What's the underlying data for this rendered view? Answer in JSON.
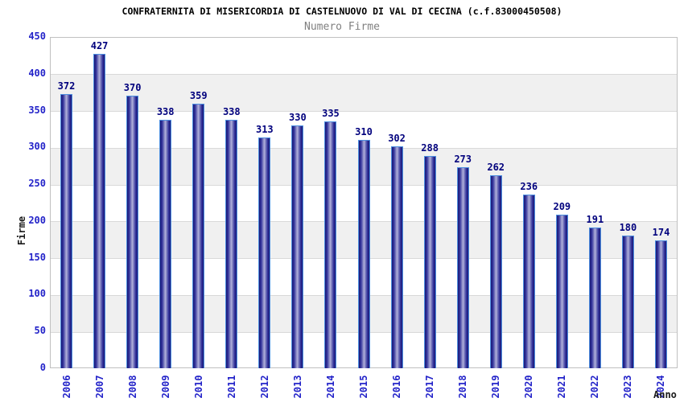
{
  "header": {
    "title": "CONFRATERNITA DI MISERICORDIA DI CASTELNUOVO DI VAL DI CECINA (c.f.83000450508)",
    "subtitle": "Numero Firme"
  },
  "chart_data": {
    "type": "bar",
    "title": "CONFRATERNITA DI MISERICORDIA DI CASTELNUOVO DI VAL DI CECINA (c.f.83000450508)",
    "subtitle": "Numero Firme",
    "xlabel": "Anno",
    "ylabel": "Firme",
    "categories": [
      "2006",
      "2007",
      "2008",
      "2009",
      "2010",
      "2011",
      "2012",
      "2013",
      "2014",
      "2015",
      "2016",
      "2017",
      "2018",
      "2019",
      "2020",
      "2021",
      "2022",
      "2023",
      "2024"
    ],
    "values": [
      372,
      427,
      370,
      338,
      359,
      338,
      313,
      330,
      335,
      310,
      302,
      288,
      273,
      262,
      236,
      209,
      191,
      180,
      174
    ],
    "ylim": [
      0,
      450
    ],
    "y_tick_step": 50,
    "y_tick_labels": [
      "0",
      "50",
      "100",
      "150",
      "200",
      "250",
      "300",
      "350",
      "400",
      "450"
    ],
    "grid": "horizontal-gridlines-with-alternating-bands",
    "legend": "none",
    "bar_value_labels_shown": true,
    "colors": {
      "tick_label_blue": "#2323c9",
      "value_label_navy": "#00007d",
      "title": "#000000",
      "subtitle": "#808080",
      "band_gray": "#f0f0f0",
      "grid_line": "#d9d9d9",
      "plot_border": "#c0c0c0",
      "bar_edge": "#191975",
      "bar_mid": "#b3b3dc",
      "bar_outline": "#4d8fe0"
    }
  }
}
